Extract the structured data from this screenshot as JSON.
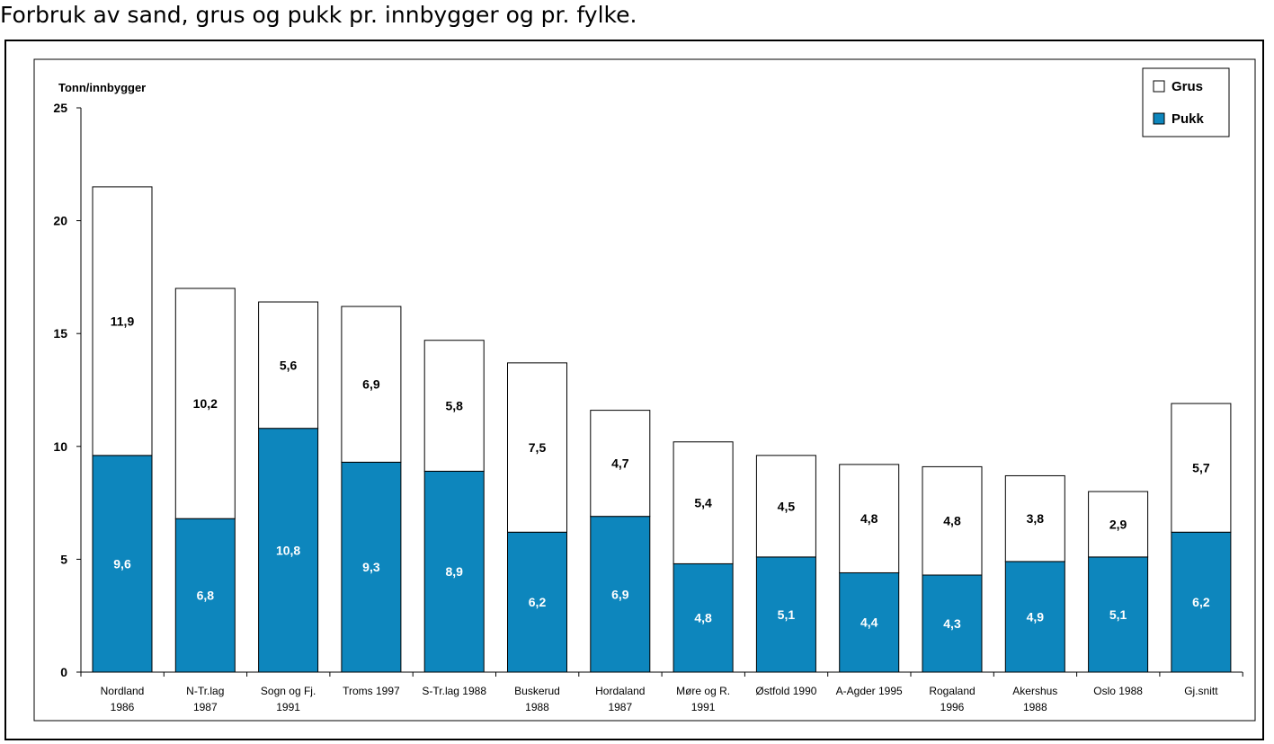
{
  "page": {
    "title": "Forbruk av sand, grus og pukk pr. innbygger og pr. fylke."
  },
  "chart_data": {
    "type": "bar",
    "stacked": true,
    "ylabel": "Tonn/innbygger",
    "ylim": [
      0,
      25
    ],
    "yticks": [
      0,
      5,
      10,
      15,
      20,
      25
    ],
    "grid": false,
    "legend_position": "top-right",
    "categories": [
      [
        "Nordland",
        "1986"
      ],
      [
        "N-Tr.lag",
        "1987"
      ],
      [
        "Sogn og Fj.",
        "1991"
      ],
      [
        "Troms 1997"
      ],
      [
        "S-Tr.lag 1988"
      ],
      [
        "Buskerud",
        "1988"
      ],
      [
        "Hordaland",
        "1987"
      ],
      [
        "Møre og R.",
        "1991"
      ],
      [
        "Østfold 1990"
      ],
      [
        "A-Agder 1995"
      ],
      [
        "Rogaland",
        "1996"
      ],
      [
        "Akershus",
        "1988"
      ],
      [
        "Oslo 1988"
      ],
      [
        "Gj.snitt"
      ]
    ],
    "series": [
      {
        "name": "Pukk",
        "color": "#0d86bd",
        "values": [
          9.6,
          6.8,
          10.8,
          9.3,
          8.9,
          6.2,
          6.9,
          4.8,
          5.1,
          4.4,
          4.3,
          4.9,
          5.1,
          6.2
        ],
        "labels": [
          "9,6",
          "6,8",
          "10,8",
          "9,3",
          "8,9",
          "6,2",
          "6,9",
          "4,8",
          "5,1",
          "4,4",
          "4,3",
          "4,9",
          "5,1",
          "6,2"
        ]
      },
      {
        "name": "Grus",
        "color": "#ffffff",
        "values": [
          11.9,
          10.2,
          5.6,
          6.9,
          5.8,
          7.5,
          4.7,
          5.4,
          4.5,
          4.8,
          4.8,
          3.8,
          2.9,
          5.7
        ],
        "labels": [
          "11,9",
          "10,2",
          "5,6",
          "6,9",
          "5,8",
          "7,5",
          "4,7",
          "5,4",
          "4,5",
          "4,8",
          "4,8",
          "3,8",
          "2,9",
          "5,7"
        ]
      }
    ]
  }
}
